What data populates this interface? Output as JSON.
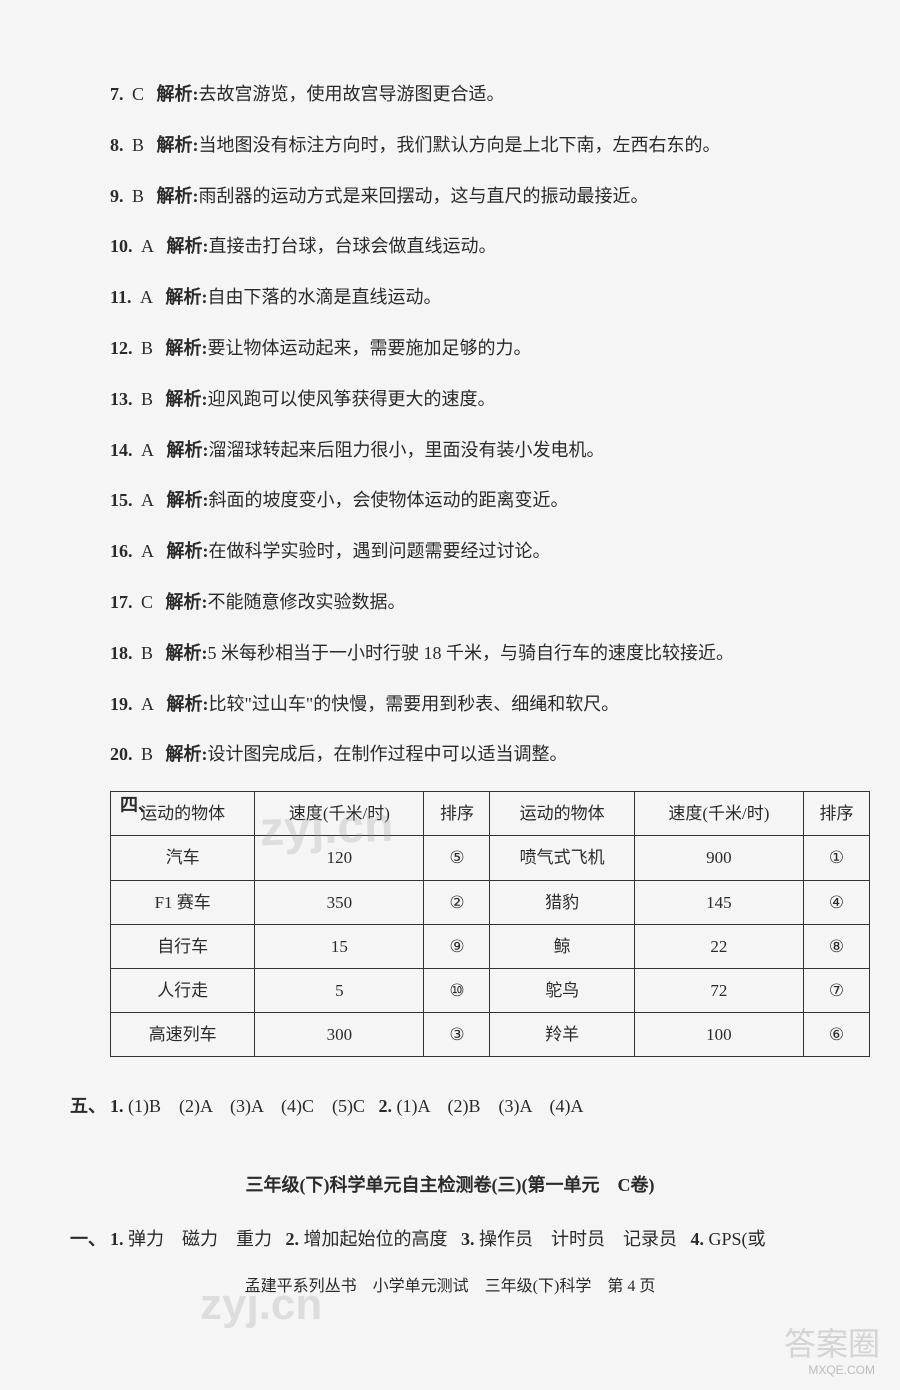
{
  "answers": [
    {
      "num": "7.",
      "choice": "C",
      "label": "解析:",
      "text": "去故宫游览，使用故宫导游图更合适。"
    },
    {
      "num": "8.",
      "choice": "B",
      "label": "解析:",
      "text": "当地图没有标注方向时，我们默认方向是上北下南，左西右东的。"
    },
    {
      "num": "9.",
      "choice": "B",
      "label": "解析:",
      "text": "雨刮器的运动方式是来回摆动，这与直尺的振动最接近。"
    },
    {
      "num": "10.",
      "choice": "A",
      "label": "解析:",
      "text": "直接击打台球，台球会做直线运动。"
    },
    {
      "num": "11.",
      "choice": "A",
      "label": "解析:",
      "text": "自由下落的水滴是直线运动。"
    },
    {
      "num": "12.",
      "choice": "B",
      "label": "解析:",
      "text": "要让物体运动起来，需要施加足够的力。"
    },
    {
      "num": "13.",
      "choice": "B",
      "label": "解析:",
      "text": "迎风跑可以使风筝获得更大的速度。"
    },
    {
      "num": "14.",
      "choice": "A",
      "label": "解析:",
      "text": "溜溜球转起来后阻力很小，里面没有装小发电机。"
    },
    {
      "num": "15.",
      "choice": "A",
      "label": "解析:",
      "text": "斜面的坡度变小，会使物体运动的距离变近。"
    },
    {
      "num": "16.",
      "choice": "A",
      "label": "解析:",
      "text": "在做科学实验时，遇到问题需要经过讨论。"
    },
    {
      "num": "17.",
      "choice": "C",
      "label": "解析:",
      "text": "不能随意修改实验数据。"
    },
    {
      "num": "18.",
      "choice": "B",
      "label": "解析:",
      "text": "5 米每秒相当于一小时行驶 18 千米，与骑自行车的速度比较接近。"
    },
    {
      "num": "19.",
      "choice": "A",
      "label": "解析:",
      "text": "比较\"过山车\"的快慢，需要用到秒表、细绳和软尺。"
    },
    {
      "num": "20.",
      "choice": "B",
      "label": "解析:",
      "text": "设计图完成后，在制作过程中可以适当调整。"
    }
  ],
  "table": {
    "marker": "四、",
    "headers": [
      "运动的物体",
      "速度(千米/时)",
      "排序",
      "运动的物体",
      "速度(千米/时)",
      "排序"
    ],
    "rows": [
      [
        "汽车",
        "120",
        "⑤",
        "喷气式飞机",
        "900",
        "①"
      ],
      [
        "F1 赛车",
        "350",
        "②",
        "猎豹",
        "145",
        "④"
      ],
      [
        "自行车",
        "15",
        "⑨",
        "鲸",
        "22",
        "⑧"
      ],
      [
        "人行走",
        "5",
        "⑩",
        "鸵鸟",
        "72",
        "⑦"
      ],
      [
        "高速列车",
        "300",
        "③",
        "羚羊",
        "100",
        "⑥"
      ]
    ]
  },
  "sectionFive": {
    "marker": "五、",
    "q1": {
      "label": "1.",
      "sub": "(1)B　(2)A　(3)A　(4)C　(5)C"
    },
    "q2": {
      "label": "2.",
      "sub": "(1)A　(2)B　(3)A　(4)A"
    }
  },
  "subTitle": "三年级(下)科学单元自主检测卷(三)(第一单元　C卷)",
  "sectionOne": {
    "marker": "一、",
    "q1": {
      "label": "1.",
      "text": "弹力　磁力　重力"
    },
    "q2": {
      "label": "2.",
      "text": "增加起始位的高度"
    },
    "q3": {
      "label": "3.",
      "text": "操作员　计时员　记录员"
    },
    "q4": {
      "label": "4.",
      "text": "GPS(或"
    }
  },
  "footer": "孟建平系列丛书　小学单元测试　三年级(下)科学　第 4 页",
  "watermark1": "zyj.cn",
  "watermark2": "zyj.cn",
  "cornerMark": "答案圈",
  "cornerSmall": "MXQE.COM"
}
